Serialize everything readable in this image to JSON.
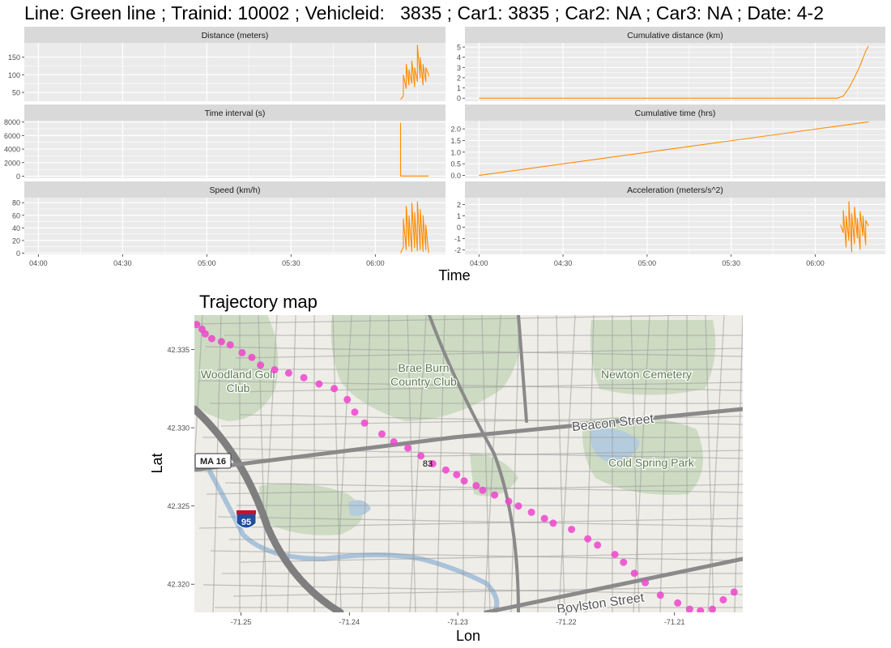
{
  "title": "Line: Green line ; Trainid: 10002 ; Vehicleid:   3835 ; Car1: 3835 ; Car2: NA ; Car3: NA ; Date: 4-2",
  "x_axis_label": "Time",
  "x_ticks": [
    "04:00",
    "04:30",
    "05:00",
    "05:30",
    "06:00"
  ],
  "colors": {
    "line": "#FF8C00",
    "strip": "#D9D9D9",
    "panel_bg": "#EBEBEB",
    "grid": "#FFFFFF",
    "points": "#EE44CC"
  },
  "chart_data": [
    {
      "type": "line",
      "title": "Distance (meters)",
      "x_range": [
        "03:55",
        "06:25"
      ],
      "ylim": [
        25,
        190
      ],
      "y_ticks": [
        50,
        100,
        150
      ],
      "x": [
        "06:09",
        "06:10",
        "06:10",
        "06:11",
        "06:11",
        "06:12",
        "06:12",
        "06:13",
        "06:13",
        "06:14",
        "06:14",
        "06:15",
        "06:15",
        "06:16",
        "06:16",
        "06:17",
        "06:17",
        "06:18",
        "06:18",
        "06:19",
        "06:19"
      ],
      "y": [
        30,
        40,
        100,
        60,
        130,
        70,
        115,
        75,
        140,
        65,
        120,
        80,
        185,
        90,
        150,
        70,
        130,
        80,
        120,
        100,
        95
      ]
    },
    {
      "type": "line",
      "title": "Cumulative distance (km)",
      "x_range": [
        "03:55",
        "06:25"
      ],
      "ylim": [
        -0.3,
        5.4
      ],
      "y_ticks": [
        0,
        1,
        2,
        3,
        4,
        5
      ],
      "x": [
        "04:00",
        "06:08",
        "06:10",
        "06:12",
        "06:14",
        "06:16",
        "06:18",
        "06:19"
      ],
      "y": [
        0,
        0,
        0.2,
        1.0,
        2.0,
        3.2,
        4.6,
        5.1
      ]
    },
    {
      "type": "line",
      "title": "Time interval (s)",
      "x_range": [
        "03:55",
        "06:25"
      ],
      "ylim": [
        -300,
        8200
      ],
      "y_ticks": [
        0,
        2000,
        4000,
        6000,
        8000
      ],
      "x": [
        "06:09",
        "06:09",
        "06:10",
        "06:19"
      ],
      "y": [
        7900,
        50,
        20,
        20
      ]
    },
    {
      "type": "line",
      "title": "Cumulative time (hrs)",
      "x_range": [
        "03:55",
        "06:25"
      ],
      "ylim": [
        -0.12,
        2.35
      ],
      "y_ticks": [
        0.0,
        0.5,
        1.0,
        1.5,
        2.0
      ],
      "y_tick_labels": [
        "0.0",
        "0.5",
        "1.0",
        "1.5",
        "2.0"
      ],
      "x": [
        "04:00",
        "06:19"
      ],
      "y": [
        0,
        2.3
      ]
    },
    {
      "type": "line",
      "title": "Speed (km/h)",
      "x_range": [
        "03:55",
        "06:25"
      ],
      "ylim": [
        -2,
        88
      ],
      "y_ticks": [
        0,
        20,
        40,
        60,
        80
      ],
      "x": [
        "06:09",
        "06:10",
        "06:10",
        "06:11",
        "06:11",
        "06:12",
        "06:12",
        "06:13",
        "06:13",
        "06:14",
        "06:14",
        "06:15",
        "06:15",
        "06:16",
        "06:16",
        "06:17",
        "06:17",
        "06:18",
        "06:18",
        "06:19"
      ],
      "y": [
        0,
        10,
        55,
        5,
        75,
        10,
        60,
        2,
        80,
        8,
        65,
        3,
        82,
        5,
        70,
        2,
        60,
        5,
        45,
        0
      ]
    },
    {
      "type": "line",
      "title": "Acceleration (meters/s^2)",
      "x_range": [
        "03:55",
        "06:25"
      ],
      "ylim": [
        -2.4,
        2.6
      ],
      "y_ticks": [
        -2,
        -1,
        0,
        1,
        2
      ],
      "x": [
        "06:09",
        "06:10",
        "06:10",
        "06:11",
        "06:11",
        "06:12",
        "06:12",
        "06:13",
        "06:13",
        "06:14",
        "06:14",
        "06:15",
        "06:15",
        "06:16",
        "06:16",
        "06:17",
        "06:17",
        "06:18",
        "06:18",
        "06:19"
      ],
      "y": [
        0.2,
        -0.5,
        1.5,
        -1.8,
        1.0,
        -1.2,
        2.3,
        -2.2,
        1.2,
        -1.5,
        1.8,
        -1.0,
        0.8,
        -2.0,
        1.4,
        -0.8,
        1.0,
        -1.6,
        0.6,
        0.1
      ]
    },
    {
      "type": "scatter",
      "title": "Trajectory map",
      "xlabel": "Lon",
      "ylabel": "Lat",
      "xlim": [
        -71.2543,
        -71.2037
      ],
      "ylim": [
        42.3182,
        42.3372
      ],
      "x_ticks": [
        -71.25,
        -71.24,
        -71.23,
        -71.22,
        -71.21
      ],
      "x_tick_labels": [
        "-71.25",
        "-71.24",
        "-71.23",
        "-71.22",
        "-71.21"
      ],
      "y_ticks": [
        42.32,
        42.325,
        42.33,
        42.335
      ],
      "y_tick_labels": [
        "42.320",
        "42.325",
        "42.330",
        "42.335"
      ],
      "annotation": "83",
      "points_lon": [
        -71.2541,
        -71.2536,
        -71.2533,
        -71.2527,
        -71.2518,
        -71.251,
        -71.2499,
        -71.249,
        -71.2482,
        -71.2469,
        -71.2456,
        -71.2442,
        -71.2428,
        -71.2414,
        -71.2402,
        -71.2395,
        -71.2386,
        -71.237,
        -71.2359,
        -71.2346,
        -71.2334,
        -71.2323,
        -71.2311,
        -71.2301,
        -71.2294,
        -71.2283,
        -71.2277,
        -71.2266,
        -71.2253,
        -71.2244,
        -71.2232,
        -71.222,
        -71.2212,
        -71.2195,
        -71.218,
        -71.2171,
        -71.2155,
        -71.2147,
        -71.2137,
        -71.2127,
        -71.2113,
        -71.2097,
        -71.2086,
        -71.2076,
        -71.2065,
        -71.2055,
        -71.2045
      ],
      "points_lat": [
        42.3366,
        42.3363,
        42.336,
        42.3357,
        42.3355,
        42.3353,
        42.3348,
        42.3345,
        42.334,
        42.3337,
        42.3335,
        42.3332,
        42.3328,
        42.3325,
        42.3318,
        42.331,
        42.3303,
        42.3296,
        42.3291,
        42.3287,
        42.3282,
        42.3277,
        42.3273,
        42.327,
        42.3266,
        42.3263,
        42.326,
        42.3257,
        42.3253,
        42.325,
        42.3246,
        42.3242,
        42.3239,
        42.3235,
        42.3229,
        42.3225,
        42.3219,
        42.3214,
        42.3207,
        42.3201,
        42.3193,
        42.3188,
        42.3184,
        42.3183,
        42.3184,
        42.319,
        42.3195
      ]
    }
  ],
  "map": {
    "labels": {
      "woodland": "Woodland Golf\nClub",
      "braeburn": "Brae Burn\nCountry Club",
      "newton_cemetery": "Newton Cemetery",
      "beacon": "Beacon Street",
      "cold_spring": "Cold Spring Park",
      "ma16": "MA 16",
      "i95": "95",
      "boylston": "Boylston Street"
    }
  }
}
